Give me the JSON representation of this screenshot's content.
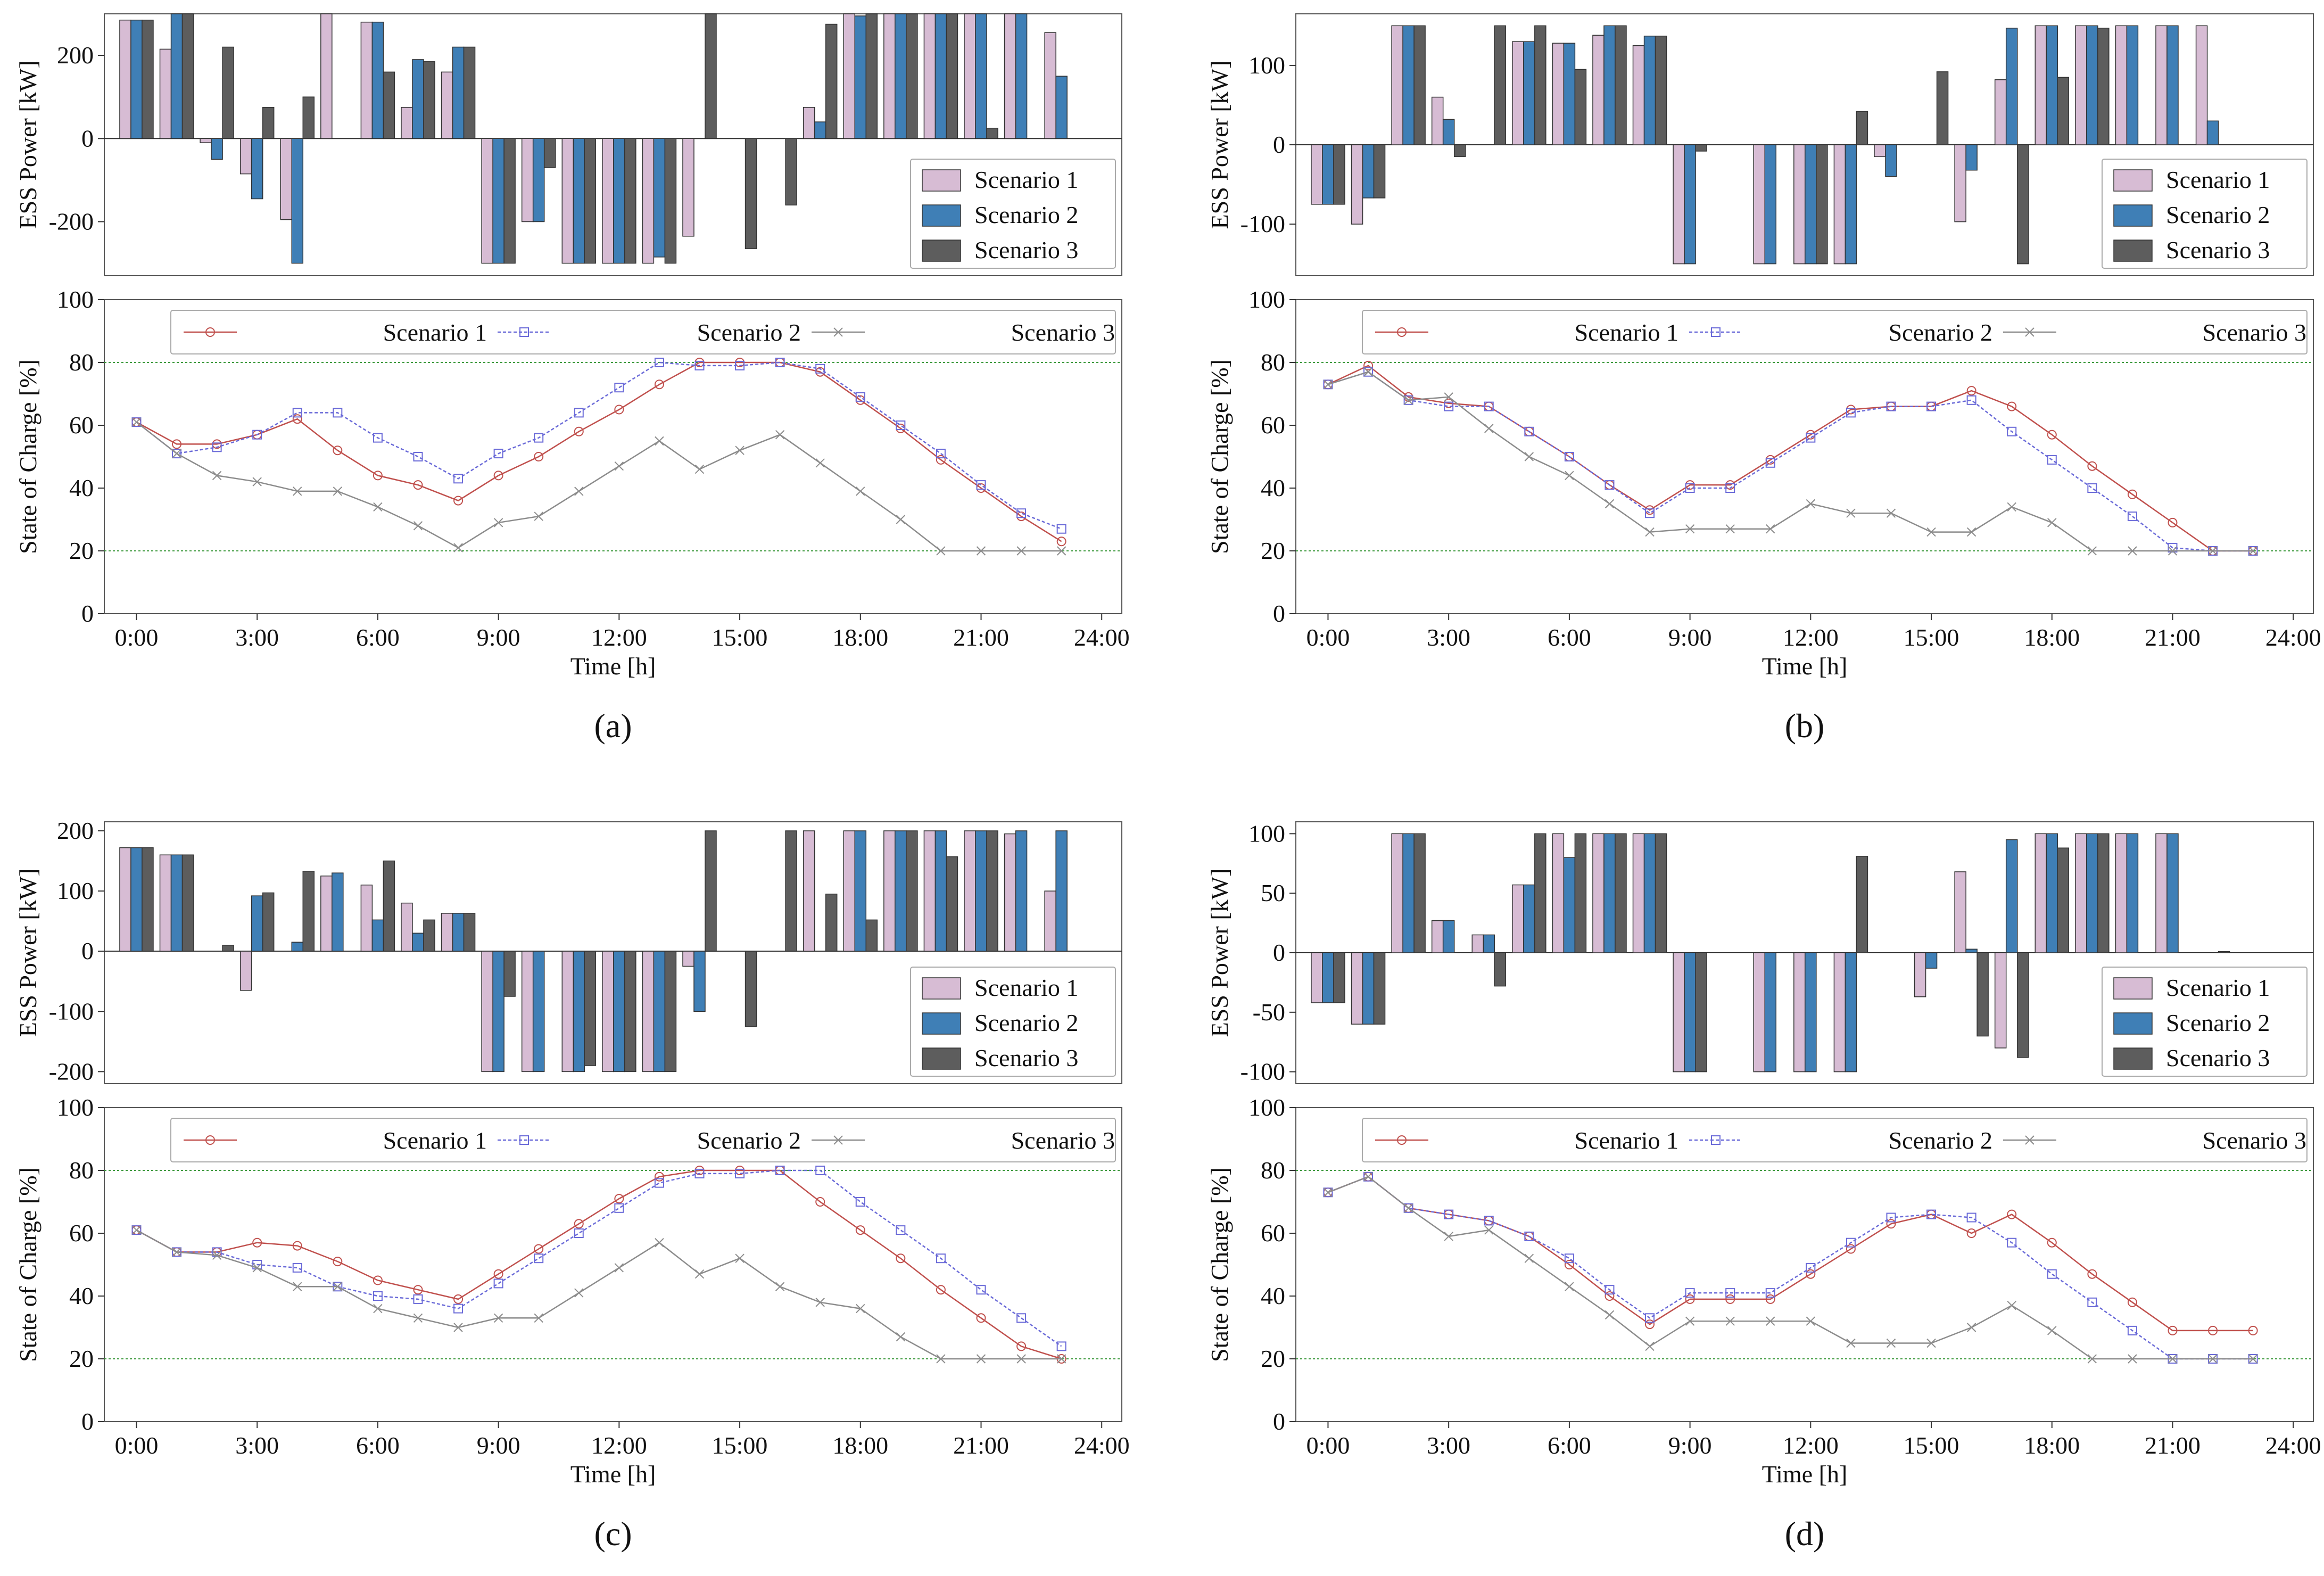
{
  "colors": {
    "s1_bar": "#d7bcd4",
    "s2_bar": "#3f7fb6",
    "s3_bar": "#5d5d5d",
    "s1_line": "#c0504d",
    "s2_line": "#6a6ad8",
    "s3_line": "#8c8c8c",
    "limit_line": "#3e9a3e",
    "axis": "#555555"
  },
  "chart_data": [
    {
      "panel_label": "(a)",
      "type": "bar",
      "title": "",
      "xlabel": "",
      "ylabel": "ESS Power [kW]",
      "ylim": [
        -330,
        300
      ],
      "yticks": [
        -200,
        0,
        200
      ],
      "legend": [
        "Scenario 1",
        "Scenario 2",
        "Scenario 3"
      ],
      "legend_position": "lower-right",
      "hours": [
        0,
        1,
        2,
        3,
        4,
        5,
        6,
        7,
        8,
        9,
        10,
        11,
        12,
        13,
        14,
        15,
        16,
        17,
        18,
        19,
        20,
        21,
        22,
        23
      ],
      "series": [
        {
          "name": "Scenario 1",
          "values": [
            285,
            215,
            -10,
            -85,
            -195,
            300,
            280,
            75,
            160,
            -300,
            -200,
            -300,
            -300,
            -300,
            -235,
            0,
            0,
            75,
            300,
            300,
            300,
            300,
            300,
            255
          ]
        },
        {
          "name": "Scenario 2",
          "values": [
            285,
            300,
            -50,
            -145,
            -300,
            0,
            280,
            190,
            220,
            -300,
            -200,
            -300,
            -300,
            -285,
            0,
            0,
            0,
            40,
            295,
            300,
            300,
            300,
            300,
            150
          ]
        },
        {
          "name": "Scenario 3",
          "values": [
            285,
            300,
            220,
            75,
            100,
            0,
            160,
            185,
            220,
            -300,
            -70,
            -300,
            -300,
            -300,
            300,
            -265,
            -160,
            275,
            300,
            300,
            300,
            25,
            0,
            0
          ]
        }
      ]
    },
    {
      "panel_label": "(a)",
      "type": "line",
      "title": "",
      "xlabel": "Time [h]",
      "ylabel": "State of Charge [%]",
      "ylim": [
        0,
        100
      ],
      "yticks": [
        0,
        20,
        40,
        60,
        80,
        100
      ],
      "xticks": [
        "0:00",
        "3:00",
        "6:00",
        "9:00",
        "12:00",
        "15:00",
        "18:00",
        "21:00",
        "24:00"
      ],
      "limits": [
        20,
        80
      ],
      "legend": [
        "Scenario 1",
        "Scenario 2",
        "Scenario 3"
      ],
      "legend_position": "top",
      "x": [
        0,
        1,
        2,
        3,
        4,
        5,
        6,
        7,
        8,
        9,
        10,
        11,
        12,
        13,
        14,
        15,
        16,
        17,
        18,
        19,
        20,
        21,
        22,
        23
      ],
      "series": [
        {
          "name": "Scenario 1",
          "marker": "circle",
          "values": [
            61,
            54,
            54,
            57,
            62,
            52,
            44,
            41,
            36,
            44,
            50,
            58,
            65,
            73,
            80,
            80,
            80,
            77,
            68,
            59,
            49,
            40,
            31,
            23
          ]
        },
        {
          "name": "Scenario 2",
          "marker": "square",
          "values": [
            61,
            51,
            53,
            57,
            64,
            64,
            56,
            50,
            43,
            51,
            56,
            64,
            72,
            80,
            79,
            79,
            80,
            78,
            69,
            60,
            51,
            41,
            32,
            27
          ]
        },
        {
          "name": "Scenario 3",
          "marker": "x",
          "values": [
            61,
            51,
            44,
            42,
            39,
            39,
            34,
            28,
            21,
            29,
            31,
            39,
            47,
            55,
            46,
            52,
            57,
            48,
            39,
            30,
            20,
            20,
            20,
            20
          ]
        }
      ]
    },
    {
      "panel_label": "(b)",
      "type": "bar",
      "title": "",
      "xlabel": "",
      "ylabel": "ESS Power [kW]",
      "ylim": [
        -165,
        165
      ],
      "yticks": [
        -100,
        0,
        100
      ],
      "legend": [
        "Scenario 1",
        "Scenario 2",
        "Scenario 3"
      ],
      "legend_position": "lower-right",
      "hours": [
        0,
        1,
        2,
        3,
        4,
        5,
        6,
        7,
        8,
        9,
        10,
        11,
        12,
        13,
        14,
        15,
        16,
        17,
        18,
        19,
        20,
        21,
        22,
        23
      ],
      "series": [
        {
          "name": "Scenario 1",
          "values": [
            -75,
            -100,
            150,
            60,
            0,
            130,
            128,
            138,
            125,
            -150,
            0,
            -150,
            -150,
            -150,
            -15,
            0,
            -97,
            82,
            150,
            150,
            150,
            150,
            150,
            0
          ]
        },
        {
          "name": "Scenario 2",
          "values": [
            -75,
            -67,
            150,
            32,
            0,
            130,
            128,
            150,
            137,
            -150,
            0,
            -150,
            -150,
            -150,
            -40,
            0,
            -32,
            147,
            150,
            150,
            150,
            150,
            30,
            0
          ]
        },
        {
          "name": "Scenario 3",
          "values": [
            -75,
            -67,
            150,
            -15,
            150,
            150,
            95,
            150,
            137,
            -8,
            0,
            0,
            -150,
            42,
            0,
            92,
            0,
            -150,
            85,
            147,
            0,
            0,
            0,
            0
          ]
        }
      ]
    },
    {
      "panel_label": "(b)",
      "type": "line",
      "title": "",
      "xlabel": "Time [h]",
      "ylabel": "State of Charge [%]",
      "ylim": [
        0,
        100
      ],
      "yticks": [
        0,
        20,
        40,
        60,
        80,
        100
      ],
      "xticks": [
        "0:00",
        "3:00",
        "6:00",
        "9:00",
        "12:00",
        "15:00",
        "18:00",
        "21:00",
        "24:00"
      ],
      "limits": [
        20,
        80
      ],
      "legend": [
        "Scenario 1",
        "Scenario 2",
        "Scenario 3"
      ],
      "legend_position": "top",
      "x": [
        0,
        1,
        2,
        3,
        4,
        5,
        6,
        7,
        8,
        9,
        10,
        11,
        12,
        13,
        14,
        15,
        16,
        17,
        18,
        19,
        20,
        21,
        22,
        23
      ],
      "series": [
        {
          "name": "Scenario 1",
          "marker": "circle",
          "values": [
            73,
            79,
            69,
            67,
            66,
            58,
            50,
            41,
            33,
            41,
            41,
            49,
            57,
            65,
            66,
            66,
            71,
            66,
            57,
            47,
            38,
            29,
            20,
            20
          ]
        },
        {
          "name": "Scenario 2",
          "marker": "square",
          "values": [
            73,
            77,
            68,
            66,
            66,
            58,
            50,
            41,
            32,
            40,
            40,
            48,
            56,
            64,
            66,
            66,
            68,
            58,
            49,
            40,
            31,
            21,
            20,
            20
          ]
        },
        {
          "name": "Scenario 3",
          "marker": "x",
          "values": [
            73,
            77,
            68,
            69,
            59,
            50,
            44,
            35,
            26,
            27,
            27,
            27,
            35,
            32,
            32,
            26,
            26,
            34,
            29,
            20,
            20,
            20,
            20,
            20
          ]
        }
      ]
    },
    {
      "panel_label": "(c)",
      "type": "bar",
      "title": "",
      "xlabel": "",
      "ylabel": "ESS Power [kW]",
      "ylim": [
        -220,
        215
      ],
      "yticks": [
        -200,
        -100,
        0,
        100,
        200
      ],
      "legend": [
        "Scenario 1",
        "Scenario 2",
        "Scenario 3"
      ],
      "legend_position": "lower-right",
      "hours": [
        0,
        1,
        2,
        3,
        4,
        5,
        6,
        7,
        8,
        9,
        10,
        11,
        12,
        13,
        14,
        15,
        16,
        17,
        18,
        19,
        20,
        21,
        22,
        23
      ],
      "series": [
        {
          "name": "Scenario 1",
          "values": [
            172,
            160,
            0,
            -65,
            0,
            125,
            110,
            80,
            63,
            -200,
            -200,
            -200,
            -200,
            -200,
            -25,
            0,
            0,
            200,
            200,
            200,
            200,
            200,
            195,
            100
          ]
        },
        {
          "name": "Scenario 2",
          "values": [
            172,
            160,
            0,
            92,
            15,
            130,
            52,
            30,
            63,
            -200,
            -200,
            -200,
            -200,
            -200,
            -100,
            0,
            0,
            0,
            200,
            200,
            200,
            200,
            200,
            200
          ]
        },
        {
          "name": "Scenario 3",
          "values": [
            172,
            160,
            10,
            97,
            133,
            0,
            150,
            52,
            63,
            -75,
            0,
            -190,
            -200,
            -200,
            200,
            -125,
            200,
            95,
            52,
            200,
            157,
            200,
            0,
            0
          ]
        }
      ]
    },
    {
      "panel_label": "(c)",
      "type": "line",
      "title": "",
      "xlabel": "Time [h]",
      "ylabel": "State of Charge [%]",
      "ylim": [
        0,
        100
      ],
      "yticks": [
        0,
        20,
        40,
        60,
        80,
        100
      ],
      "xticks": [
        "0:00",
        "3:00",
        "6:00",
        "9:00",
        "12:00",
        "15:00",
        "18:00",
        "21:00",
        "24:00"
      ],
      "limits": [
        20,
        80
      ],
      "legend": [
        "Scenario 1",
        "Scenario 2",
        "Scenario 3"
      ],
      "legend_position": "top",
      "x": [
        0,
        1,
        2,
        3,
        4,
        5,
        6,
        7,
        8,
        9,
        10,
        11,
        12,
        13,
        14,
        15,
        16,
        17,
        18,
        19,
        20,
        21,
        22,
        23
      ],
      "series": [
        {
          "name": "Scenario 1",
          "marker": "circle",
          "values": [
            61,
            54,
            54,
            57,
            56,
            51,
            45,
            42,
            39,
            47,
            55,
            63,
            71,
            78,
            80,
            80,
            80,
            70,
            61,
            52,
            42,
            33,
            24,
            20
          ]
        },
        {
          "name": "Scenario 2",
          "marker": "square",
          "values": [
            61,
            54,
            54,
            50,
            49,
            43,
            40,
            39,
            36,
            44,
            52,
            60,
            68,
            76,
            79,
            79,
            80,
            80,
            70,
            61,
            52,
            42,
            33,
            24
          ]
        },
        {
          "name": "Scenario 3",
          "marker": "x",
          "values": [
            61,
            54,
            53,
            49,
            43,
            43,
            36,
            33,
            30,
            33,
            33,
            41,
            49,
            57,
            47,
            52,
            43,
            38,
            36,
            27,
            20,
            20,
            20,
            20
          ]
        }
      ]
    },
    {
      "panel_label": "(d)",
      "type": "bar",
      "title": "",
      "xlabel": "",
      "ylabel": "ESS Power [kW]",
      "ylim": [
        -110,
        110
      ],
      "yticks": [
        -100,
        -50,
        0,
        50,
        100
      ],
      "legend": [
        "Scenario 1",
        "Scenario 2",
        "Scenario 3"
      ],
      "legend_position": "lower-right",
      "hours": [
        0,
        1,
        2,
        3,
        4,
        5,
        6,
        7,
        8,
        9,
        10,
        11,
        12,
        13,
        14,
        15,
        16,
        17,
        18,
        19,
        20,
        21,
        22,
        23
      ],
      "series": [
        {
          "name": "Scenario 1",
          "values": [
            -42,
            -60,
            100,
            27,
            15,
            57,
            100,
            100,
            100,
            -100,
            0,
            -100,
            -100,
            -100,
            0,
            -37,
            68,
            -80,
            100,
            100,
            100,
            100,
            0,
            0
          ]
        },
        {
          "name": "Scenario 2",
          "values": [
            -42,
            -60,
            100,
            27,
            15,
            57,
            80,
            100,
            100,
            -100,
            0,
            -100,
            -100,
            -100,
            0,
            -13,
            3,
            95,
            100,
            100,
            100,
            100,
            0,
            0
          ]
        },
        {
          "name": "Scenario 3",
          "values": [
            -42,
            -60,
            100,
            0,
            -28,
            100,
            100,
            100,
            100,
            -100,
            0,
            0,
            0,
            81,
            0,
            0,
            -70,
            -88,
            88,
            100,
            0,
            0,
            1,
            0
          ]
        }
      ]
    },
    {
      "panel_label": "(d)",
      "type": "line",
      "title": "",
      "xlabel": "Time [h]",
      "ylabel": "State of Charge [%]",
      "ylim": [
        0,
        100
      ],
      "yticks": [
        0,
        20,
        40,
        60,
        80,
        100
      ],
      "xticks": [
        "0:00",
        "3:00",
        "6:00",
        "9:00",
        "12:00",
        "15:00",
        "18:00",
        "21:00",
        "24:00"
      ],
      "limits": [
        20,
        80
      ],
      "legend": [
        "Scenario 1",
        "Scenario 2",
        "Scenario 3"
      ],
      "legend_position": "top",
      "x": [
        0,
        1,
        2,
        3,
        4,
        5,
        6,
        7,
        8,
        9,
        10,
        11,
        12,
        13,
        14,
        15,
        16,
        17,
        18,
        19,
        20,
        21,
        22,
        23
      ],
      "series": [
        {
          "name": "Scenario 1",
          "marker": "circle",
          "values": [
            73,
            78,
            68,
            66,
            64,
            59,
            50,
            40,
            31,
            39,
            39,
            39,
            47,
            55,
            63,
            66,
            60,
            66,
            57,
            47,
            38,
            29,
            29,
            29
          ]
        },
        {
          "name": "Scenario 2",
          "marker": "square",
          "values": [
            73,
            78,
            68,
            66,
            64,
            59,
            52,
            42,
            33,
            41,
            41,
            41,
            49,
            57,
            65,
            66,
            65,
            57,
            47,
            38,
            29,
            20,
            20,
            20
          ]
        },
        {
          "name": "Scenario 3",
          "marker": "x",
          "values": [
            73,
            78,
            68,
            59,
            61,
            52,
            43,
            34,
            24,
            32,
            32,
            32,
            32,
            25,
            25,
            25,
            30,
            37,
            29,
            20,
            20,
            20,
            20,
            20
          ]
        }
      ]
    }
  ]
}
